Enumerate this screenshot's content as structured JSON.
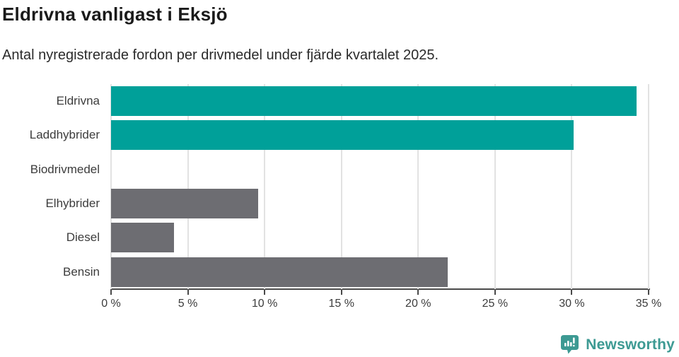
{
  "header": {
    "title": "Eldrivna vanligast i Eksjö",
    "subtitle": "Antal nyregistrerade fordon per drivmedel under fjärde kvartalet 2025."
  },
  "chart_data": {
    "type": "bar",
    "orientation": "horizontal",
    "title": "Eldrivna vanligast i Eksjö",
    "subtitle": "Antal nyregistrerade fordon per drivmedel under fjärde kvartalet 2025.",
    "categories": [
      "Eldrivna",
      "Laddhybrider",
      "Biodrivmedel",
      "Elhybrider",
      "Diesel",
      "Bensin"
    ],
    "values": [
      34.2,
      30.1,
      0,
      9.6,
      4.1,
      21.9
    ],
    "unit": "%",
    "bar_colors": [
      "#00A099",
      "#00A099",
      "#6D6D72",
      "#6D6D72",
      "#6D6D72",
      "#6D6D72"
    ],
    "xlim": [
      0,
      35
    ],
    "xticks": [
      0,
      5,
      10,
      15,
      20,
      25,
      30,
      35
    ],
    "xtick_labels": [
      "0 %",
      "5 %",
      "10 %",
      "15 %",
      "20 %",
      "25 %",
      "30 %",
      "35 %"
    ],
    "grid": true,
    "legend": "none",
    "xlabel": "",
    "ylabel": ""
  },
  "footer": {
    "brand": "Newsworthy",
    "logo_icon": "newsworthy-speech-bubble-bar-chart"
  },
  "colors": {
    "accent_teal": "#00A099",
    "muted_gray": "#6D6D72",
    "brand_teal": "#3D9A93",
    "gridline": "#E2E2E2",
    "axis": "#4A4A4A",
    "title_text": "#1A1A1A",
    "body_text": "#3C3C3C"
  }
}
